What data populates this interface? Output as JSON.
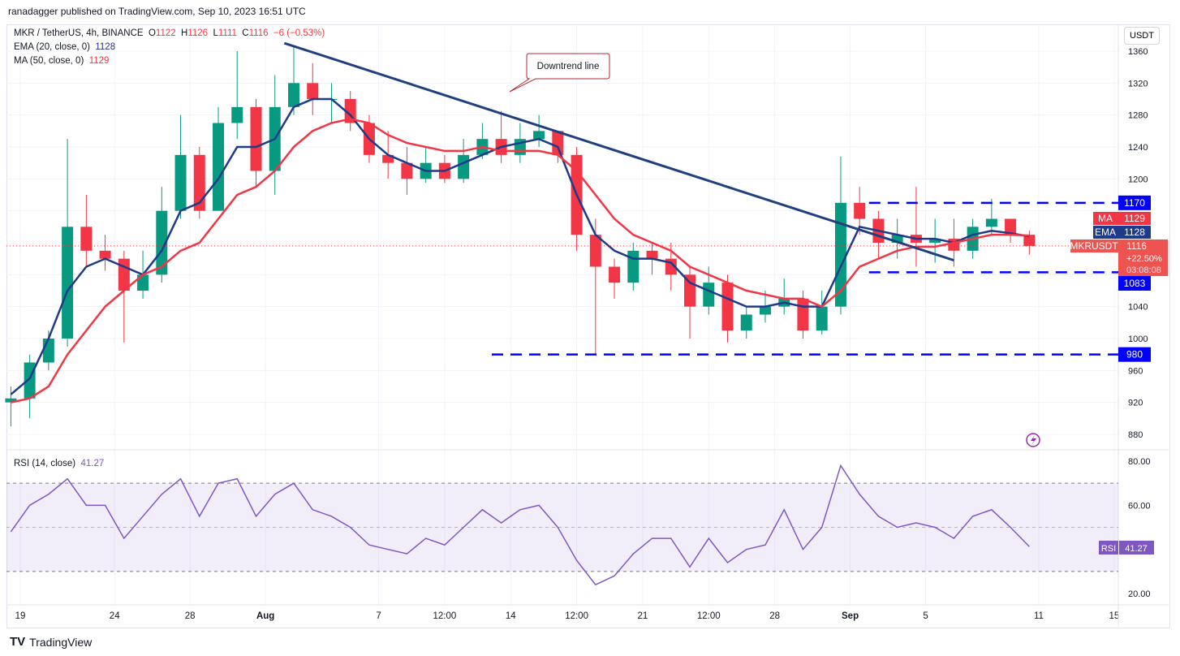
{
  "header": "ranadagger published on TradingView.com, Sep 10, 2023 16:51 UTC",
  "legend": {
    "symbol": "MKR / TetherUS, 4h, BINANCE",
    "o_label": "O",
    "o": "1122",
    "h_label": "H",
    "h": "1126",
    "l_label": "L",
    "l": "1111",
    "c_label": "C",
    "c": "1116",
    "change": "−6 (−0.53%)",
    "ema": "EMA (20, close, 0)",
    "ema_val": "1128",
    "ma": "MA (50, close, 0)",
    "ma_val": "1129",
    "rsi": "RSI (14, close)",
    "rsi_val": "41.27"
  },
  "currency_button": "USDT",
  "footer_logo": "TradingView",
  "colors": {
    "up": "#089981",
    "down": "#f23645",
    "ema": "#1e3a8a",
    "ma": "#f23645",
    "rsi": "#7e57c2",
    "level": "#0000ff",
    "trend": "#1f3f7f"
  },
  "chart_data": [
    {
      "type": "candlestick",
      "ylim": [
        860,
        1380
      ],
      "y_ticks": [
        880,
        920,
        960,
        1000,
        1040,
        1080,
        1120,
        1160,
        1200,
        1240,
        1280,
        1320,
        1360
      ],
      "x_ticks": [
        {
          "label": "19",
          "date": "2023-07-19"
        },
        {
          "label": "24",
          "date": "2023-07-24"
        },
        {
          "label": "28",
          "date": "2023-07-28"
        },
        {
          "label": "Aug",
          "date": "2023-08-01"
        },
        {
          "label": "7",
          "date": "2023-08-07"
        },
        {
          "label": "12:00",
          "date": "2023-08-10T12:00"
        },
        {
          "label": "14",
          "date": "2023-08-14"
        },
        {
          "label": "12:00",
          "date": "2023-08-17T12:00"
        },
        {
          "label": "21",
          "date": "2023-08-21"
        },
        {
          "label": "12:00",
          "date": "2023-08-24T12:00"
        },
        {
          "label": "28",
          "date": "2023-08-28"
        },
        {
          "label": "Sep",
          "date": "2023-09-01"
        },
        {
          "label": "5",
          "date": "2023-09-05"
        },
        {
          "label": "11",
          "date": "2023-09-11"
        },
        {
          "label": "15",
          "date": "2023-09-15"
        }
      ],
      "start_date": "2023-07-18",
      "ohlc": [
        [
          920,
          940,
          890,
          925
        ],
        [
          925,
          980,
          900,
          970
        ],
        [
          970,
          1010,
          960,
          1000
        ],
        [
          1000,
          1250,
          990,
          1140
        ],
        [
          1140,
          1180,
          1090,
          1110
        ],
        [
          1110,
          1130,
          1085,
          1100
        ],
        [
          1100,
          1110,
          995,
          1060
        ],
        [
          1060,
          1110,
          1050,
          1080
        ],
        [
          1080,
          1190,
          1070,
          1160
        ],
        [
          1160,
          1280,
          1150,
          1230
        ],
        [
          1230,
          1240,
          1150,
          1160
        ],
        [
          1160,
          1290,
          1160,
          1270
        ],
        [
          1270,
          1360,
          1250,
          1290
        ],
        [
          1290,
          1300,
          1190,
          1210
        ],
        [
          1210,
          1330,
          1180,
          1290
        ],
        [
          1290,
          1365,
          1280,
          1320
        ],
        [
          1320,
          1345,
          1280,
          1300
        ],
        [
          1300,
          1320,
          1270,
          1300
        ],
        [
          1300,
          1310,
          1260,
          1270
        ],
        [
          1270,
          1280,
          1220,
          1230
        ],
        [
          1230,
          1260,
          1200,
          1220
        ],
        [
          1220,
          1240,
          1180,
          1200
        ],
        [
          1200,
          1240,
          1195,
          1220
        ],
        [
          1220,
          1230,
          1195,
          1200
        ],
        [
          1200,
          1250,
          1195,
          1230
        ],
        [
          1230,
          1270,
          1225,
          1250
        ],
        [
          1250,
          1285,
          1220,
          1230
        ],
        [
          1230,
          1270,
          1220,
          1250
        ],
        [
          1250,
          1280,
          1240,
          1260
        ],
        [
          1260,
          1260,
          1220,
          1230
        ],
        [
          1230,
          1240,
          1110,
          1130
        ],
        [
          1130,
          1150,
          980,
          1090
        ],
        [
          1090,
          1100,
          1050,
          1070
        ],
        [
          1070,
          1120,
          1060,
          1110
        ],
        [
          1110,
          1120,
          1080,
          1100
        ],
        [
          1100,
          1120,
          1060,
          1080
        ],
        [
          1080,
          1090,
          1000,
          1040
        ],
        [
          1040,
          1090,
          1030,
          1070
        ],
        [
          1070,
          1080,
          995,
          1010
        ],
        [
          1010,
          1040,
          1000,
          1030
        ],
        [
          1030,
          1060,
          1020,
          1040
        ],
        [
          1040,
          1075,
          1030,
          1050
        ],
        [
          1050,
          1060,
          1000,
          1010
        ],
        [
          1010,
          1060,
          1005,
          1040
        ],
        [
          1040,
          1228,
          1030,
          1170
        ],
        [
          1170,
          1190,
          1130,
          1150
        ],
        [
          1150,
          1160,
          1100,
          1120
        ],
        [
          1120,
          1150,
          1100,
          1130
        ],
        [
          1130,
          1190,
          1090,
          1120
        ],
        [
          1120,
          1150,
          1095,
          1125
        ],
        [
          1125,
          1150,
          1090,
          1110
        ],
        [
          1110,
          1150,
          1100,
          1140
        ],
        [
          1140,
          1175,
          1130,
          1150
        ],
        [
          1150,
          1145,
          1120,
          1130
        ],
        [
          1130,
          1135,
          1105,
          1116
        ]
      ],
      "series": [
        {
          "name": "EMA",
          "values": [
            930,
            950,
            1000,
            1060,
            1090,
            1100,
            1090,
            1080,
            1110,
            1160,
            1170,
            1200,
            1240,
            1240,
            1250,
            1290,
            1300,
            1300,
            1280,
            1250,
            1230,
            1220,
            1210,
            1210,
            1220,
            1230,
            1240,
            1245,
            1250,
            1240,
            1180,
            1130,
            1110,
            1100,
            1100,
            1095,
            1070,
            1060,
            1050,
            1040,
            1040,
            1045,
            1040,
            1040,
            1090,
            1140,
            1135,
            1130,
            1125,
            1125,
            1120,
            1130,
            1135,
            1132,
            1128
          ]
        },
        {
          "name": "MA",
          "values": [
            920,
            925,
            940,
            980,
            1010,
            1040,
            1060,
            1080,
            1090,
            1110,
            1120,
            1150,
            1180,
            1190,
            1210,
            1240,
            1260,
            1270,
            1275,
            1270,
            1255,
            1245,
            1240,
            1235,
            1235,
            1240,
            1235,
            1235,
            1235,
            1230,
            1210,
            1180,
            1150,
            1130,
            1120,
            1110,
            1090,
            1080,
            1070,
            1060,
            1055,
            1050,
            1050,
            1040,
            1060,
            1090,
            1100,
            1110,
            1115,
            1115,
            1120,
            1125,
            1130,
            1130,
            1129
          ]
        }
      ],
      "levels": [
        {
          "label": "1170",
          "value": 1170,
          "from": "2023-09-02"
        },
        {
          "label": "1083",
          "value": 1083,
          "from": "2023-09-02"
        },
        {
          "label": "980",
          "value": 980,
          "from": "2023-08-13"
        }
      ],
      "trendline": {
        "from": {
          "date": "2023-08-02",
          "price": 1370
        },
        "to": {
          "date": "2023-09-06T12:00",
          "price": 1098
        }
      },
      "annotation": "Downtrend line",
      "price_labels": [
        {
          "tag": "MA",
          "value": "1129"
        },
        {
          "tag": "EMA",
          "value": "1128"
        },
        {
          "tag": "MKRUSDT",
          "value": "1116",
          "change": "+22.50%",
          "countdown": "03:08:08"
        }
      ]
    },
    {
      "type": "line",
      "name": "RSI",
      "ylim": [
        15,
        85
      ],
      "y_ticks": [
        "20.00",
        "60.00",
        "80.00"
      ],
      "bands": [
        30,
        70
      ],
      "values": [
        48,
        60,
        65,
        72,
        60,
        60,
        45,
        55,
        65,
        72,
        55,
        70,
        72,
        55,
        65,
        70,
        58,
        55,
        50,
        42,
        40,
        38,
        45,
        42,
        50,
        58,
        52,
        58,
        60,
        50,
        35,
        24,
        28,
        38,
        45,
        45,
        32,
        45,
        34,
        40,
        42,
        58,
        40,
        50,
        78,
        65,
        55,
        50,
        52,
        50,
        45,
        55,
        58,
        50,
        41.27
      ]
    }
  ]
}
